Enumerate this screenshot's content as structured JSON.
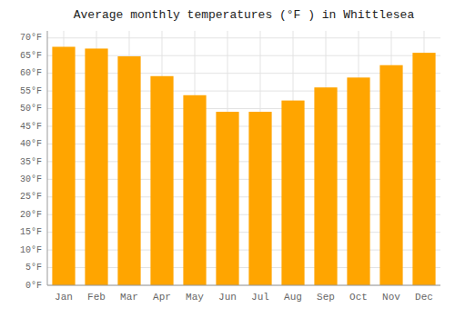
{
  "chart_data": {
    "type": "bar",
    "title": "Average monthly temperatures (°F ) in Whittlesea",
    "categories": [
      "Jan",
      "Feb",
      "Mar",
      "Apr",
      "May",
      "Jun",
      "Jul",
      "Aug",
      "Sep",
      "Oct",
      "Nov",
      "Dec"
    ],
    "values": [
      67.5,
      67.0,
      64.8,
      59.2,
      53.8,
      49.1,
      49.1,
      52.3,
      56.0,
      58.8,
      62.3,
      65.8
    ],
    "color": "#FFA500",
    "ylim": [
      0,
      72
    ],
    "yticks": [
      {
        "value": 0,
        "label": "0°F"
      },
      {
        "value": 5,
        "label": "5°F"
      },
      {
        "value": 10,
        "label": "10°F"
      },
      {
        "value": 15,
        "label": "15°F"
      },
      {
        "value": 20,
        "label": "20°F"
      },
      {
        "value": 25,
        "label": "25°F"
      },
      {
        "value": 30,
        "label": "30°F"
      },
      {
        "value": 35,
        "label": "35°F"
      },
      {
        "value": 40,
        "label": "40°F"
      },
      {
        "value": 45,
        "label": "45°F"
      },
      {
        "value": 50,
        "label": "50°F"
      },
      {
        "value": 55,
        "label": "55°F"
      },
      {
        "value": 60,
        "label": "60°F"
      },
      {
        "value": 65,
        "label": "65°F"
      },
      {
        "value": 70,
        "label": "70°F"
      }
    ],
    "grid": true
  }
}
